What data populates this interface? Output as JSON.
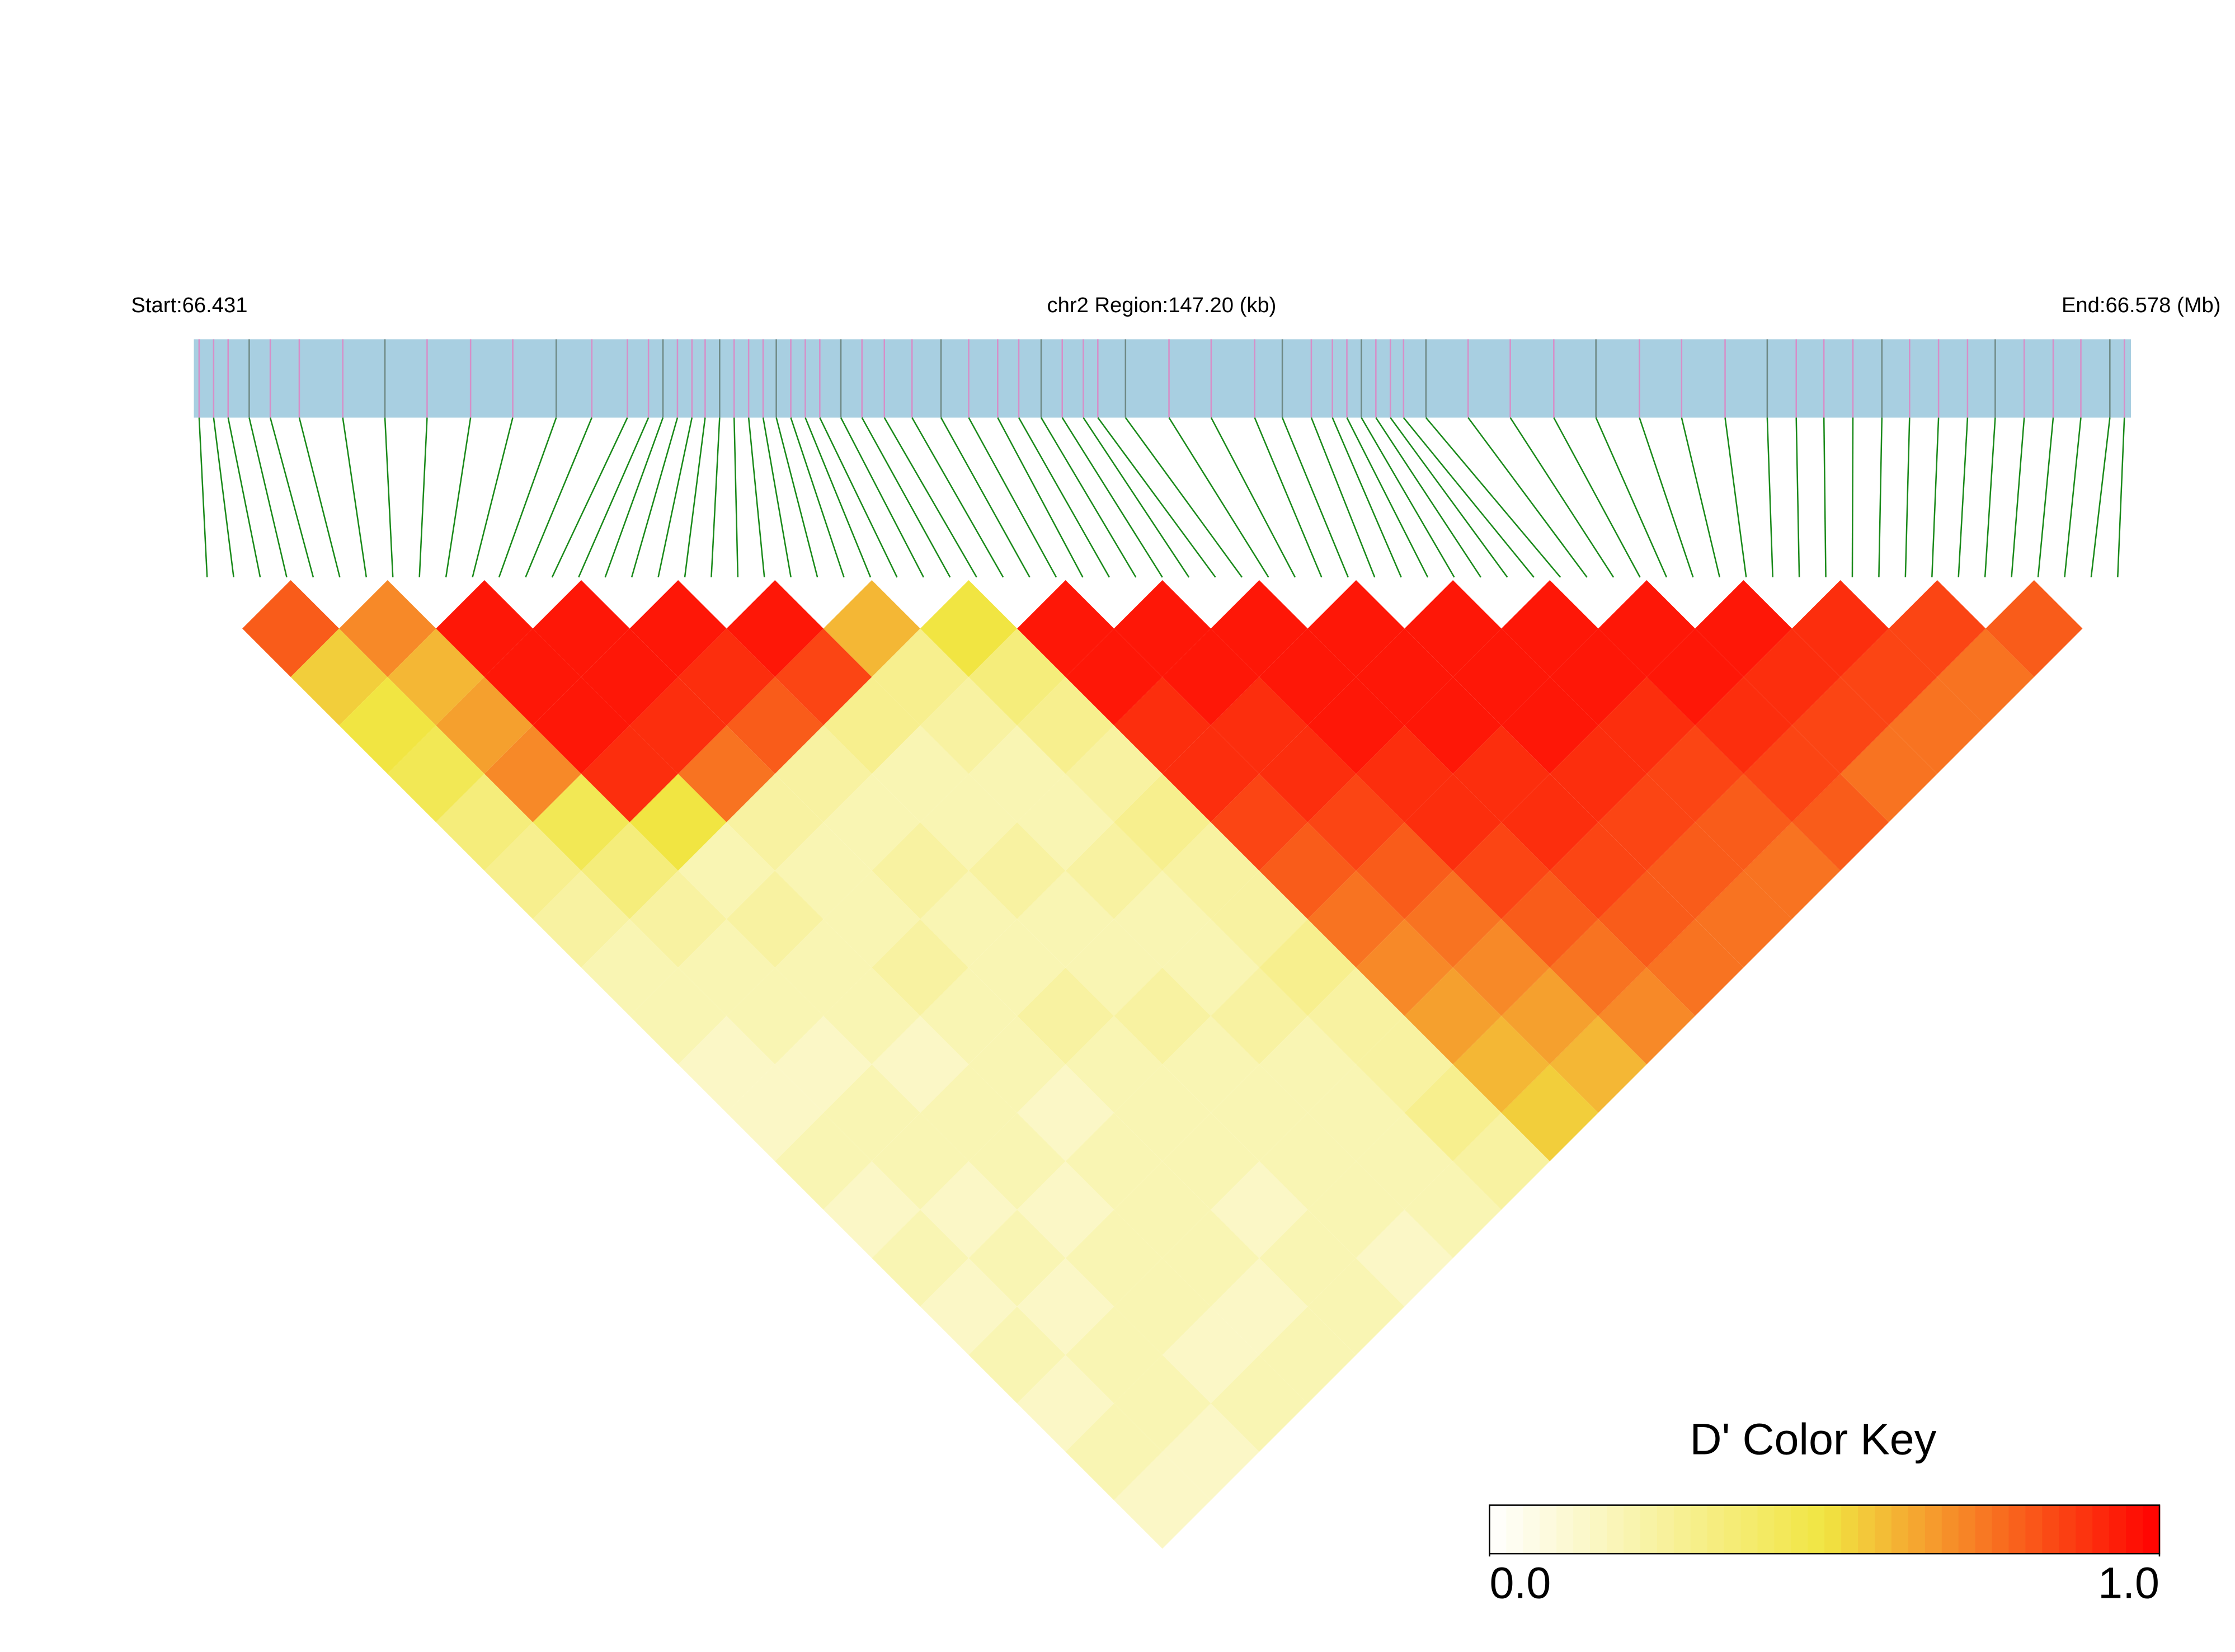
{
  "chart_data": {
    "type": "heatmap",
    "start_label": "Start:66.431",
    "region_label": "chr2 Region:147.20 (kb)",
    "end_label": "End:66.578 (Mb)",
    "xlim": [
      66.431,
      66.578
    ],
    "snp_color": "#d68fc8",
    "track_color": "#a8cfe1",
    "link_color": "#1a8a1a",
    "snp_positions": [
      66.4314,
      66.4325,
      66.4336,
      66.4352,
      66.4368,
      66.439,
      66.4423,
      66.4455,
      66.4487,
      66.452,
      66.4552,
      66.4585,
      66.4612,
      66.4639,
      66.4655,
      66.4666,
      66.4677,
      66.4688,
      66.4698,
      66.4709,
      66.472,
      66.4731,
      66.4742,
      66.4752,
      66.4763,
      66.4774,
      66.4785,
      66.4801,
      66.4817,
      66.4834,
      66.4855,
      66.4877,
      66.4898,
      66.492,
      66.4936,
      66.4953,
      66.4969,
      66.4985,
      66.4996,
      66.5017,
      66.505,
      66.5082,
      66.5115,
      66.5136,
      66.5158,
      66.5174,
      66.5185,
      66.5196,
      66.5207,
      66.5218,
      66.5228,
      66.5245,
      66.5277,
      66.5309,
      66.5342,
      66.5374,
      66.5407,
      66.5439,
      66.5472,
      66.5504,
      66.5526,
      66.5547,
      66.5569,
      66.5591,
      66.5612,
      66.5634,
      66.5656,
      66.5677,
      66.5699,
      66.5721,
      66.5742,
      66.5764,
      66.5775
    ],
    "ld_matrix": [
      [
        0.8,
        0.55,
        0.5,
        0.45,
        0.35,
        0.3,
        0.25,
        0.2,
        0.2,
        0.15,
        0.15,
        0.2,
        0.15,
        0.2,
        0.15,
        0.2,
        0.15,
        0.2,
        0.15
      ],
      [
        0.7,
        0.6,
        0.65,
        0.7,
        0.45,
        0.35,
        0.25,
        0.2,
        0.2,
        0.15,
        0.2,
        0.2,
        0.15,
        0.2,
        0.15,
        0.2,
        0.2,
        0.15
      ],
      [
        0.95,
        0.95,
        0.95,
        0.9,
        0.5,
        0.2,
        0.25,
        0.2,
        0.2,
        0.15,
        0.2,
        0.2,
        0.15,
        0.2,
        0.2,
        0.15,
        0.2
      ],
      [
        0.95,
        0.95,
        0.9,
        0.75,
        0.25,
        0.2,
        0.2,
        0.25,
        0.2,
        0.2,
        0.15,
        0.2,
        0.2,
        0.2,
        0.15,
        0.2
      ],
      [
        0.95,
        0.9,
        0.8,
        0.25,
        0.2,
        0.25,
        0.2,
        0.2,
        0.25,
        0.2,
        0.2,
        0.2,
        0.15,
        0.2,
        0.2
      ],
      [
        0.95,
        0.85,
        0.3,
        0.2,
        0.2,
        0.25,
        0.2,
        0.2,
        0.25,
        0.2,
        0.2,
        0.2,
        0.2,
        0.15
      ],
      [
        0.6,
        0.3,
        0.25,
        0.2,
        0.2,
        0.25,
        0.2,
        0.2,
        0.25,
        0.2,
        0.2,
        0.2,
        0.2
      ],
      [
        0.5,
        0.35,
        0.3,
        0.25,
        0.3,
        0.25,
        0.25,
        0.3,
        0.25,
        0.25,
        0.3,
        0.25
      ],
      [
        0.95,
        0.95,
        0.9,
        0.9,
        0.85,
        0.8,
        0.75,
        0.7,
        0.65,
        0.6,
        0.55
      ],
      [
        0.95,
        0.95,
        0.9,
        0.9,
        0.85,
        0.8,
        0.75,
        0.7,
        0.65,
        0.6
      ],
      [
        0.95,
        0.95,
        0.95,
        0.9,
        0.9,
        0.85,
        0.8,
        0.75,
        0.7
      ],
      [
        0.95,
        0.95,
        0.95,
        0.9,
        0.9,
        0.85,
        0.8,
        0.75
      ],
      [
        0.95,
        0.95,
        0.95,
        0.9,
        0.85,
        0.8,
        0.75
      ],
      [
        0.95,
        0.95,
        0.9,
        0.85,
        0.8,
        0.75
      ],
      [
        0.95,
        0.95,
        0.9,
        0.85,
        0.8
      ],
      [
        0.95,
        0.9,
        0.85,
        0.75
      ],
      [
        0.9,
        0.85,
        0.75
      ],
      [
        0.85,
        0.75
      ],
      [
        0.8
      ]
    ],
    "colorscale": [
      "#ffffff",
      "#f1e542",
      "#ff0000"
    ],
    "color_key": {
      "title": "D' Color Key",
      "lim": [
        0,
        1
      ],
      "ticks": [
        {
          "value": 0,
          "label": "0.0"
        },
        {
          "value": 1,
          "label": "1.0"
        }
      ]
    }
  }
}
